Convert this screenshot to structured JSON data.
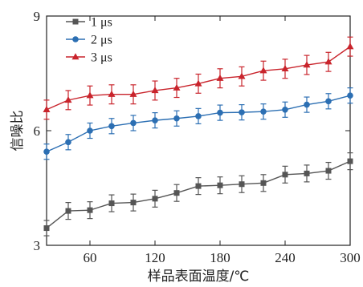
{
  "chart_data": {
    "type": "line",
    "xlabel": "样品表面温度/℃",
    "ylabel": "信噪比",
    "xlim": [
      20,
      300
    ],
    "ylim": [
      3,
      9
    ],
    "xticks": [
      60,
      120,
      180,
      240,
      300
    ],
    "yticks": [
      3,
      6,
      9
    ],
    "x": [
      20,
      40,
      60,
      80,
      100,
      120,
      140,
      160,
      180,
      200,
      220,
      240,
      260,
      280,
      300
    ],
    "legend_position": "top-left",
    "series": [
      {
        "name": "1 μs",
        "color": "#555555",
        "marker": "square",
        "values": [
          3.45,
          3.9,
          3.92,
          4.1,
          4.12,
          4.22,
          4.37,
          4.55,
          4.57,
          4.6,
          4.63,
          4.85,
          4.88,
          4.95,
          5.2
        ],
        "errors": [
          0.2,
          0.22,
          0.22,
          0.22,
          0.22,
          0.22,
          0.22,
          0.22,
          0.22,
          0.22,
          0.22,
          0.22,
          0.22,
          0.22,
          0.22
        ]
      },
      {
        "name": "2 μs",
        "color": "#2c6fb3",
        "marker": "circle",
        "values": [
          5.45,
          5.7,
          6.0,
          6.12,
          6.2,
          6.27,
          6.32,
          6.38,
          6.47,
          6.48,
          6.5,
          6.55,
          6.68,
          6.77,
          6.92
        ],
        "errors": [
          0.2,
          0.2,
          0.2,
          0.2,
          0.2,
          0.2,
          0.2,
          0.2,
          0.2,
          0.2,
          0.2,
          0.2,
          0.2,
          0.2,
          0.2
        ]
      },
      {
        "name": "3 μs",
        "color": "#c9242c",
        "marker": "triangle",
        "values": [
          6.55,
          6.8,
          6.92,
          6.95,
          6.95,
          7.05,
          7.12,
          7.23,
          7.37,
          7.42,
          7.57,
          7.62,
          7.72,
          7.8,
          8.2
        ],
        "errors": [
          0.25,
          0.25,
          0.25,
          0.25,
          0.25,
          0.25,
          0.25,
          0.25,
          0.25,
          0.25,
          0.25,
          0.25,
          0.25,
          0.25,
          0.25
        ]
      }
    ]
  }
}
